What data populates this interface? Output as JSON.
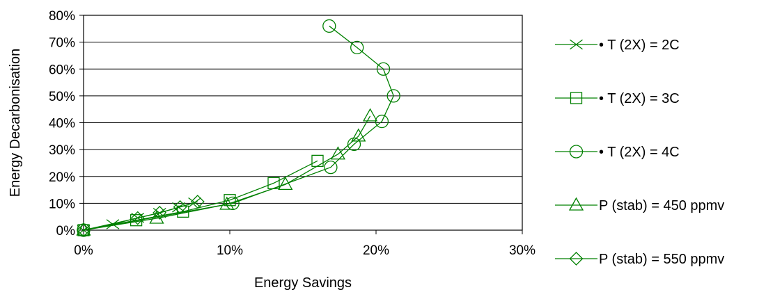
{
  "chart_data": {
    "type": "line",
    "xlabel": "Energy Savings",
    "ylabel": "Energy Decarbonisation",
    "xlim": [
      0,
      0.3
    ],
    "ylim": [
      0,
      0.8
    ],
    "x_ticks": [
      0,
      0.1,
      0.2,
      0.3
    ],
    "y_ticks": [
      0,
      0.1,
      0.2,
      0.3,
      0.4,
      0.5,
      0.6,
      0.7,
      0.8
    ],
    "x_tick_labels": [
      "0%",
      "10%",
      "20%",
      "30%"
    ],
    "y_tick_labels": [
      "0%",
      "10%",
      "20%",
      "30%",
      "40%",
      "50%",
      "60%",
      "70%",
      "80%"
    ],
    "grid": "horizontal",
    "legend_position": "right",
    "series_color": "#008000",
    "series": [
      {
        "name": "• T (2X) = 2C",
        "marker": "x",
        "x": [
          0,
          0.02,
          0.037,
          0.052,
          0.065,
          0.076
        ],
        "y": [
          0,
          0.022,
          0.046,
          0.064,
          0.085,
          0.103
        ]
      },
      {
        "name": "• T (2X) = 3C",
        "marker": "square",
        "x": [
          0,
          0.036,
          0.068,
          0.1,
          0.13,
          0.16
        ],
        "y": [
          0,
          0.037,
          0.069,
          0.112,
          0.175,
          0.258
        ]
      },
      {
        "name": "• T (2X) = 4C",
        "marker": "circle",
        "x": [
          0,
          0.102,
          0.169,
          0.185,
          0.204,
          0.212,
          0.205,
          0.187,
          0.168
        ],
        "y": [
          0,
          0.1,
          0.234,
          0.32,
          0.405,
          0.5,
          0.6,
          0.68,
          0.76
        ]
      },
      {
        "name": "P (stab) = 450 ppmv",
        "marker": "triangle",
        "x": [
          0,
          0.05,
          0.098,
          0.138,
          0.174,
          0.188,
          0.196
        ],
        "y": [
          0,
          0.044,
          0.096,
          0.17,
          0.283,
          0.35,
          0.425
        ]
      },
      {
        "name": "P (stab) = 550 ppmv",
        "marker": "diamond",
        "x": [
          0,
          0.037,
          0.052,
          0.066,
          0.078
        ],
        "y": [
          0,
          0.045,
          0.065,
          0.086,
          0.106
        ]
      }
    ]
  }
}
